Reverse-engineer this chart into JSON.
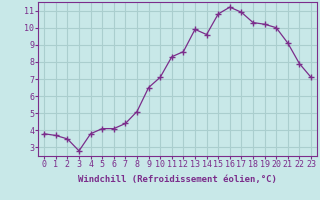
{
  "x": [
    0,
    1,
    2,
    3,
    4,
    5,
    6,
    7,
    8,
    9,
    10,
    11,
    12,
    13,
    14,
    15,
    16,
    17,
    18,
    19,
    20,
    21,
    22,
    23
  ],
  "y": [
    3.8,
    3.7,
    3.5,
    2.8,
    3.8,
    4.1,
    4.1,
    4.4,
    5.1,
    6.5,
    7.1,
    8.3,
    8.6,
    9.9,
    9.6,
    10.8,
    11.2,
    10.9,
    10.3,
    10.2,
    10.0,
    9.1,
    7.9,
    7.1
  ],
  "line_color": "#7b2d8b",
  "marker": "+",
  "marker_size": 4,
  "background_color": "#c8e8e8",
  "grid_color": "#aacece",
  "xlabel": "Windchill (Refroidissement éolien,°C)",
  "xlim": [
    -0.5,
    23.5
  ],
  "ylim": [
    2.5,
    11.5
  ],
  "xticks": [
    0,
    1,
    2,
    3,
    4,
    5,
    6,
    7,
    8,
    9,
    10,
    11,
    12,
    13,
    14,
    15,
    16,
    17,
    18,
    19,
    20,
    21,
    22,
    23
  ],
  "yticks": [
    3,
    4,
    5,
    6,
    7,
    8,
    9,
    10,
    11
  ],
  "tick_color": "#7b2d8b",
  "label_color": "#7b2d8b",
  "spine_color": "#7b2d8b",
  "xlabel_fontsize": 6.5,
  "tick_fontsize": 6.0
}
